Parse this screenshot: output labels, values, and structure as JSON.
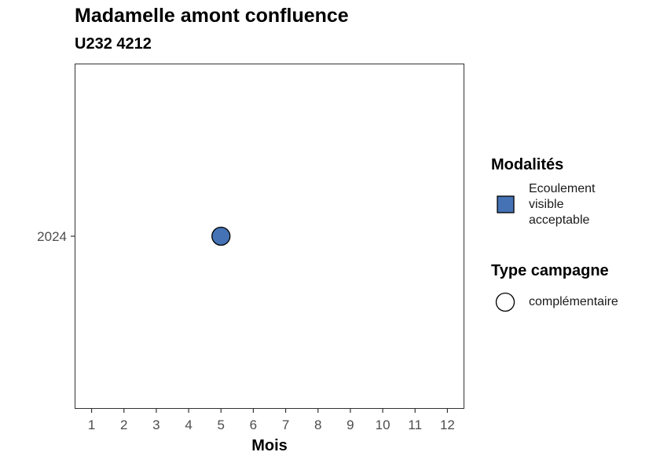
{
  "chart_data": {
    "type": "scatter",
    "title": "Madamelle amont confluence",
    "subtitle": "U232 4212",
    "xlabel": "Mois",
    "ylabel": "",
    "x_ticks": [
      1,
      2,
      3,
      4,
      5,
      6,
      7,
      8,
      9,
      10,
      11,
      12
    ],
    "y_categories": [
      "2024"
    ],
    "points": [
      {
        "x": 5,
        "y": "2024",
        "modalite": "Ecoulement visible acceptable",
        "type_campagne": "complémentaire",
        "color": "#4472b4"
      }
    ],
    "legends": [
      {
        "title": "Modalités",
        "entries": [
          {
            "label": "Ecoulement visible acceptable",
            "shape": "square",
            "color": "#4472b4"
          }
        ]
      },
      {
        "title": "Type campagne",
        "entries": [
          {
            "label": "complémentaire",
            "shape": "circle",
            "color": "#ffffff"
          }
        ]
      }
    ],
    "grid": false,
    "legend_position": "right"
  }
}
